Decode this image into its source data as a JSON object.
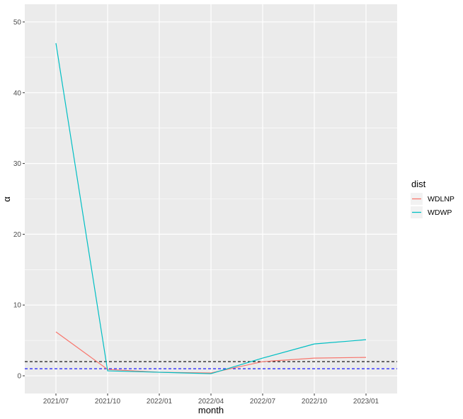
{
  "chart_data": {
    "type": "line",
    "xlabel": "month",
    "ylabel": "α",
    "x": [
      "2021/07",
      "2021/10",
      "2022/01",
      "2022/04",
      "2022/07",
      "2022/10",
      "2023/01"
    ],
    "x_ticks": [
      "2021/07",
      "2021/10",
      "2022/01",
      "2022/04",
      "2022/07",
      "2022/10",
      "2023/01"
    ],
    "ylim": [
      -2.5,
      52.5
    ],
    "y_ticks": [
      0,
      10,
      20,
      30,
      40,
      50
    ],
    "grid": true,
    "legend": {
      "title": "dist",
      "position": "right"
    },
    "series": [
      {
        "name": "WDLNP",
        "color": "#F8766D",
        "values": [
          6.2,
          0.9,
          0.5,
          0.4,
          2.0,
          2.5,
          2.6
        ]
      },
      {
        "name": "WDWP",
        "color": "#00BFC4",
        "values": [
          47.0,
          0.7,
          0.5,
          0.3,
          2.5,
          4.5,
          5.1
        ]
      }
    ],
    "reference_lines": [
      {
        "y": 2,
        "color": "#000000",
        "style": "dashed"
      },
      {
        "y": 1,
        "color": "#0000FF",
        "style": "dashed"
      }
    ]
  }
}
